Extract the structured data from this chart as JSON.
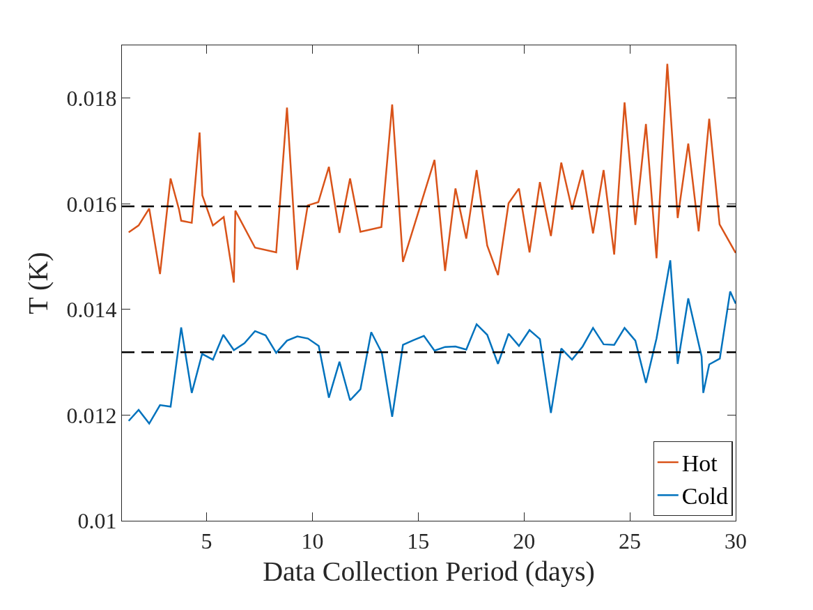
{
  "chart_data": {
    "type": "line",
    "xlabel": "Data Collection Period (days)",
    "ylabel": "T (K)",
    "xlim": [
      1,
      30
    ],
    "xticks": [
      5,
      10,
      15,
      20,
      25,
      30
    ],
    "ylim": [
      0.01,
      0.019
    ],
    "yticks": [
      0.01,
      0.012,
      0.014,
      0.016,
      0.018
    ],
    "legend": "bottom right",
    "line_style": "solid",
    "series": [
      {
        "name": "Hot",
        "color": "#d95319",
        "x": [
          1.32,
          1.79,
          2.29,
          2.8,
          3.3,
          3.7,
          3.8,
          4.3,
          4.67,
          4.8,
          5.3,
          5.81,
          6.29,
          6.36,
          7.29,
          8.29,
          8.8,
          9.28,
          9.78,
          10.28,
          10.78,
          11.28,
          11.78,
          12.27,
          13.26,
          13.77,
          14.28,
          15.77,
          16.27,
          16.76,
          17.27,
          17.76,
          18.26,
          18.77,
          19.27,
          19.76,
          20.26,
          20.75,
          21.27,
          21.76,
          22.27,
          22.77,
          23.26,
          23.76,
          24.26,
          24.75,
          25.26,
          25.76,
          26.26,
          26.77,
          27.26,
          27.76,
          28.25,
          28.75,
          29.24,
          30
        ],
        "values": [
          0.01546,
          0.01559,
          0.01591,
          0.01467,
          0.01648,
          0.01589,
          0.01568,
          0.01564,
          0.01735,
          0.01616,
          0.01559,
          0.01575,
          0.01451,
          0.01587,
          0.01517,
          0.01508,
          0.01782,
          0.01475,
          0.01597,
          0.01603,
          0.0167,
          0.01545,
          0.01648,
          0.01547,
          0.01556,
          0.01788,
          0.0149,
          0.01683,
          0.01473,
          0.01629,
          0.01534,
          0.01664,
          0.01521,
          0.01465,
          0.01601,
          0.01629,
          0.01508,
          0.01641,
          0.01539,
          0.01678,
          0.01589,
          0.01664,
          0.01544,
          0.01664,
          0.01504,
          0.01792,
          0.0156,
          0.01751,
          0.01497,
          0.01865,
          0.01573,
          0.01714,
          0.01548,
          0.01761,
          0.01561,
          0.01507
        ]
      },
      {
        "name": "Cold",
        "color": "#0072bd",
        "x": [
          1.32,
          1.79,
          2.29,
          2.8,
          3.3,
          3.8,
          4.3,
          4.79,
          5.3,
          5.79,
          6.29,
          6.79,
          7.29,
          7.79,
          8.29,
          8.8,
          9.29,
          9.79,
          10.3,
          10.78,
          11.28,
          11.78,
          12.27,
          12.78,
          13.28,
          13.77,
          14.28,
          14.78,
          15.27,
          15.77,
          16.27,
          16.76,
          17.27,
          17.76,
          18.26,
          18.77,
          19.27,
          19.76,
          20.26,
          20.75,
          21.27,
          21.76,
          22.27,
          22.77,
          23.26,
          23.76,
          24.26,
          24.75,
          25.26,
          25.76,
          26.26,
          26.91,
          27.26,
          27.76,
          28.39,
          28.47,
          28.75,
          29.25,
          29.74,
          30
        ],
        "values": [
          0.01189,
          0.0121,
          0.01184,
          0.01219,
          0.01216,
          0.01366,
          0.01242,
          0.01316,
          0.01305,
          0.01352,
          0.01323,
          0.01336,
          0.01359,
          0.01351,
          0.01318,
          0.01341,
          0.01349,
          0.01345,
          0.01331,
          0.01233,
          0.01301,
          0.01228,
          0.01249,
          0.01357,
          0.01318,
          0.01197,
          0.01333,
          0.01342,
          0.0135,
          0.01322,
          0.01329,
          0.0133,
          0.01324,
          0.01372,
          0.01352,
          0.01297,
          0.01354,
          0.01331,
          0.01361,
          0.01344,
          0.01204,
          0.01326,
          0.01305,
          0.0133,
          0.01365,
          0.01334,
          0.01333,
          0.01365,
          0.01341,
          0.01261,
          0.01345,
          0.01493,
          0.01297,
          0.01421,
          0.01311,
          0.01242,
          0.01296,
          0.01307,
          0.01434,
          0.01411
        ]
      }
    ],
    "ref_lines": [
      {
        "axis": "y",
        "value": 0.01595,
        "color": "#000000",
        "line_style": "dashed"
      },
      {
        "axis": "y",
        "value": 0.01319,
        "color": "#000000",
        "line_style": "dashed"
      }
    ]
  }
}
